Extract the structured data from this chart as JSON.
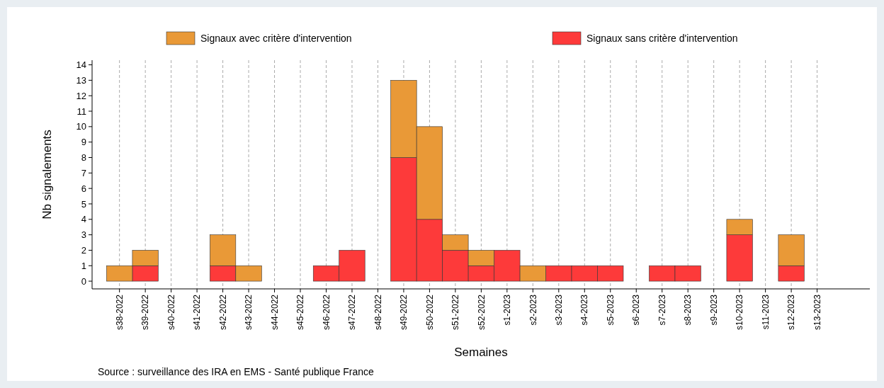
{
  "chart_data": {
    "type": "bar",
    "stacked": true,
    "xlabel": "Semaines",
    "ylabel": "Nb signalements",
    "annotations": [
      "Source : surveillance des IRA en EMS - Santé publique France"
    ],
    "categories": [
      "s38-2022",
      "s39-2022",
      "s40-2022",
      "s41-2022",
      "s42-2022",
      "s43-2022",
      "s44-2022",
      "s45-2022",
      "s46-2022",
      "s47-2022",
      "s48-2022",
      "s49-2022",
      "s50-2022",
      "s51-2022",
      "s52-2022",
      "s1-2023",
      "s2-2023",
      "s3-2023",
      "s4-2023",
      "s5-2023",
      "s6-2023",
      "s7-2023",
      "s8-2023",
      "s9-2023",
      "s10-2023",
      "s11-2023",
      "s12-2023",
      "s13-2023"
    ],
    "series": [
      {
        "name": "Signaux sans critère d'intervention",
        "color": "#fd3a3a",
        "values": [
          0,
          1,
          0,
          0,
          1,
          0,
          0,
          0,
          1,
          2,
          0,
          8,
          4,
          2,
          1,
          2,
          0,
          1,
          1,
          1,
          0,
          1,
          1,
          0,
          3,
          0,
          1,
          0
        ]
      },
      {
        "name": "Signaux avec critère d'intervention",
        "color": "#e99937",
        "values": [
          1,
          1,
          0,
          0,
          2,
          1,
          0,
          0,
          0,
          0,
          0,
          5,
          6,
          1,
          1,
          0,
          1,
          0,
          0,
          0,
          0,
          0,
          0,
          0,
          1,
          0,
          2,
          0
        ]
      }
    ],
    "ylim": [
      -0.5,
      14.3
    ],
    "yticks": [
      0,
      1,
      2,
      3,
      4,
      5,
      6,
      7,
      8,
      9,
      10,
      11,
      12,
      13,
      14
    ],
    "grid": "x",
    "legend": "top"
  }
}
